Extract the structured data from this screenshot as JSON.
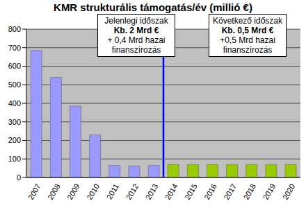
{
  "chart_data": {
    "type": "bar",
    "title": "KMR strukturális támogatás/év (millió €)",
    "categories": [
      "2007",
      "2008",
      "2009",
      "2010",
      "2011",
      "2012",
      "2013",
      "2014",
      "2015",
      "2016",
      "2017",
      "2018",
      "2019",
      "2020"
    ],
    "values": [
      685,
      540,
      385,
      230,
      65,
      62,
      65,
      70,
      70,
      70,
      70,
      70,
      70,
      70
    ],
    "colors": [
      "#9999ff",
      "#9999ff",
      "#9999ff",
      "#9999ff",
      "#9999ff",
      "#9999ff",
      "#9999ff",
      "#99cc00",
      "#99cc00",
      "#99cc00",
      "#99cc00",
      "#99cc00",
      "#99cc00",
      "#99cc00"
    ],
    "ylim": [
      0,
      800
    ],
    "yticks": [
      0,
      100,
      200,
      300,
      400,
      500,
      600,
      700,
      800
    ],
    "grid": true,
    "annotations": [
      {
        "title": "Jelenlegi időszak",
        "amount": "Kb. 2 Mrd €",
        "note": "+ 0,4 Mrd hazai finanszírozás"
      },
      {
        "title": "Következő időszak",
        "amount": "Kb. 0,5 Mrd €",
        "note": "+0,5 Mrd hazai finanszírozás"
      }
    ]
  }
}
